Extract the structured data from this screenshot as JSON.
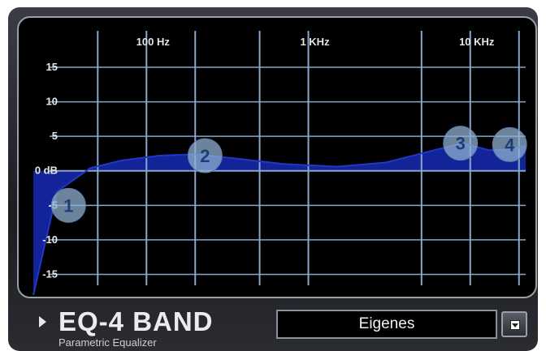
{
  "plugin": {
    "title": "EQ-4 BAND",
    "subtitle": "Parametric Equalizer"
  },
  "preset": {
    "selected": "Eigenes"
  },
  "graph": {
    "frequency_labels": [
      {
        "label": "100 Hz",
        "freq": 100
      },
      {
        "label": "1 KHz",
        "freq": 1000
      },
      {
        "label": "10 KHz",
        "freq": 10000
      }
    ],
    "db_labels": [
      {
        "label": "15",
        "db": 15
      },
      {
        "label": "10",
        "db": 10
      },
      {
        "label": "5",
        "db": 5
      },
      {
        "label": "0 dB",
        "db": 0
      },
      {
        "label": "-5",
        "db": -5
      },
      {
        "label": "-10",
        "db": -10
      },
      {
        "label": "-15",
        "db": -15
      }
    ],
    "db_range": [
      -18,
      17
    ],
    "freq_range": [
      20,
      22000
    ],
    "vertical_grid_freqs": [
      50,
      100,
      200,
      500,
      1000,
      5000,
      10000,
      20000
    ],
    "curve_points": [
      {
        "freq": 20,
        "db": -18
      },
      {
        "freq": 28,
        "db": -3
      },
      {
        "freq": 45,
        "db": 0.4
      },
      {
        "freq": 70,
        "db": 1.5
      },
      {
        "freq": 120,
        "db": 2.2
      },
      {
        "freq": 200,
        "db": 2.4
      },
      {
        "freq": 350,
        "db": 1.8
      },
      {
        "freq": 700,
        "db": 1.0
      },
      {
        "freq": 1500,
        "db": 0.6
      },
      {
        "freq": 3000,
        "db": 1.2
      },
      {
        "freq": 6000,
        "db": 3.0
      },
      {
        "freq": 9000,
        "db": 4.0
      },
      {
        "freq": 13000,
        "db": 3.0
      },
      {
        "freq": 17000,
        "db": 3.1
      },
      {
        "freq": 22000,
        "db": 3.6
      }
    ],
    "bands": [
      {
        "label": "1",
        "freq": 33,
        "db": -5
      },
      {
        "label": "2",
        "freq": 230,
        "db": 2.2
      },
      {
        "label": "3",
        "freq": 8700,
        "db": 4.0
      },
      {
        "label": "4",
        "freq": 17500,
        "db": 3.8
      }
    ],
    "colors": {
      "grid": "#8aa6cc",
      "curve_fill": "#1428a8",
      "curve_stroke": "#2038c8",
      "handle": "#8fb0d0",
      "label": "#e6e6e6"
    }
  }
}
